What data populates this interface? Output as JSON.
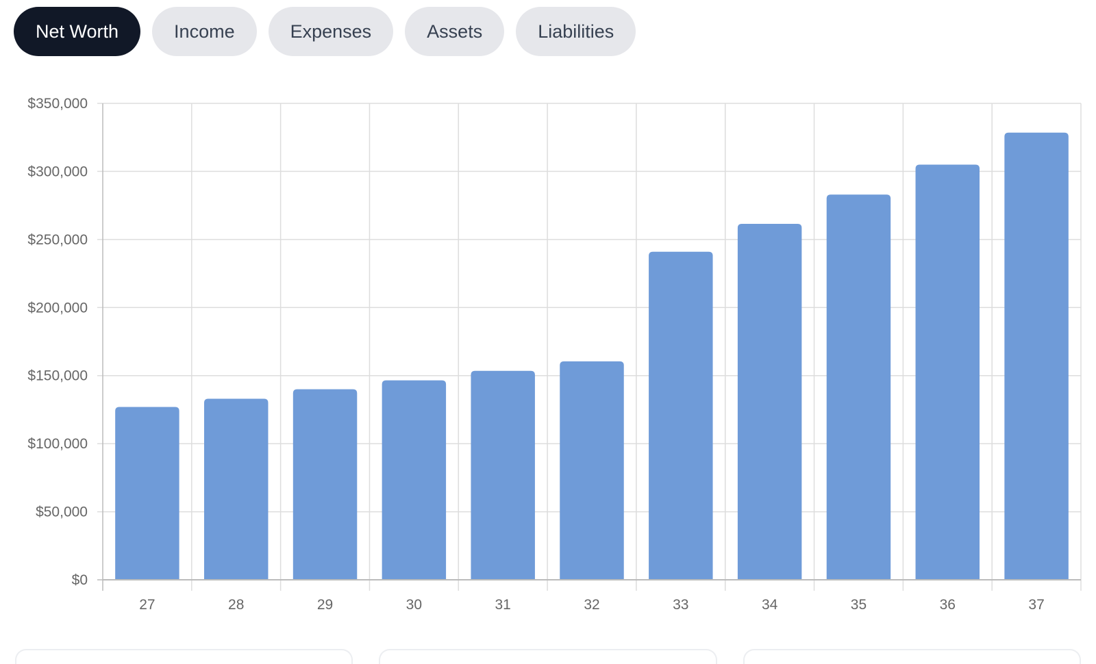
{
  "tabs": [
    {
      "label": "Net Worth",
      "active": true
    },
    {
      "label": "Income",
      "active": false
    },
    {
      "label": "Expenses",
      "active": false
    },
    {
      "label": "Assets",
      "active": false
    },
    {
      "label": "Liabilities",
      "active": false
    }
  ],
  "colors": {
    "bar": "#6f9bd8",
    "grid": "#dddddd",
    "axis": "#bbbbbb",
    "tab_active_bg": "#111827",
    "tab_bg": "#e6e7eb"
  },
  "chart_data": {
    "type": "bar",
    "categories": [
      "27",
      "28",
      "29",
      "30",
      "31",
      "32",
      "33",
      "34",
      "35",
      "36",
      "37"
    ],
    "values": [
      127000,
      133000,
      140000,
      146500,
      153500,
      160500,
      241000,
      261500,
      283000,
      305000,
      328500
    ],
    "ylim": [
      0,
      350000
    ],
    "yticks": [
      0,
      50000,
      100000,
      150000,
      200000,
      250000,
      300000,
      350000
    ],
    "ytick_labels": [
      "$0",
      "$50,000",
      "$100,000",
      "$150,000",
      "$200,000",
      "$250,000",
      "$300,000",
      "$350,000"
    ],
    "grid": true,
    "title": "",
    "xlabel": "",
    "ylabel": ""
  }
}
